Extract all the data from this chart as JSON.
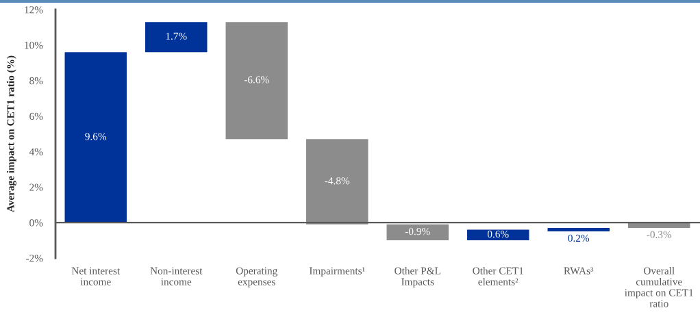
{
  "chart_data": {
    "type": "bar",
    "ylabel": "Average impact on CET1 ratio (%)",
    "categories": [
      "Net interest\nincome",
      "Non-interest\nincome",
      "Operating\nexpenses",
      "Impairments¹",
      "Other P&L\nImpacts",
      "Other CET1\nelements²",
      "RWAs³",
      "Overall\ncumulative\nimpact on CET1\nratio"
    ],
    "values": [
      9.6,
      1.7,
      -6.6,
      -4.8,
      -0.9,
      0.6,
      0.2,
      -0.3
    ],
    "base": [
      0,
      9.6,
      11.3,
      4.7,
      -0.1,
      -1.0,
      -0.5,
      0
    ],
    "colors": [
      "#003399",
      "#003399",
      "#8c8c8c",
      "#8c8c8c",
      "#8c8c8c",
      "#003399",
      "#003399",
      "#8c8c8c"
    ],
    "value_labels": [
      "9.6%",
      "1.7%",
      "-6.6%",
      "-4.8%",
      "-0.9%",
      "0.6%",
      "0.2%",
      "-0.3%"
    ],
    "ylim": [
      -2,
      12
    ],
    "yticks": [
      {
        "value": -2,
        "label": "-2%"
      },
      {
        "value": 0,
        "label": "0%"
      },
      {
        "value": 2,
        "label": "2%"
      },
      {
        "value": 4,
        "label": "4%"
      },
      {
        "value": 6,
        "label": "6%"
      },
      {
        "value": 8,
        "label": "8%"
      },
      {
        "value": 10,
        "label": "10%"
      },
      {
        "value": 12,
        "label": "12%"
      }
    ]
  }
}
